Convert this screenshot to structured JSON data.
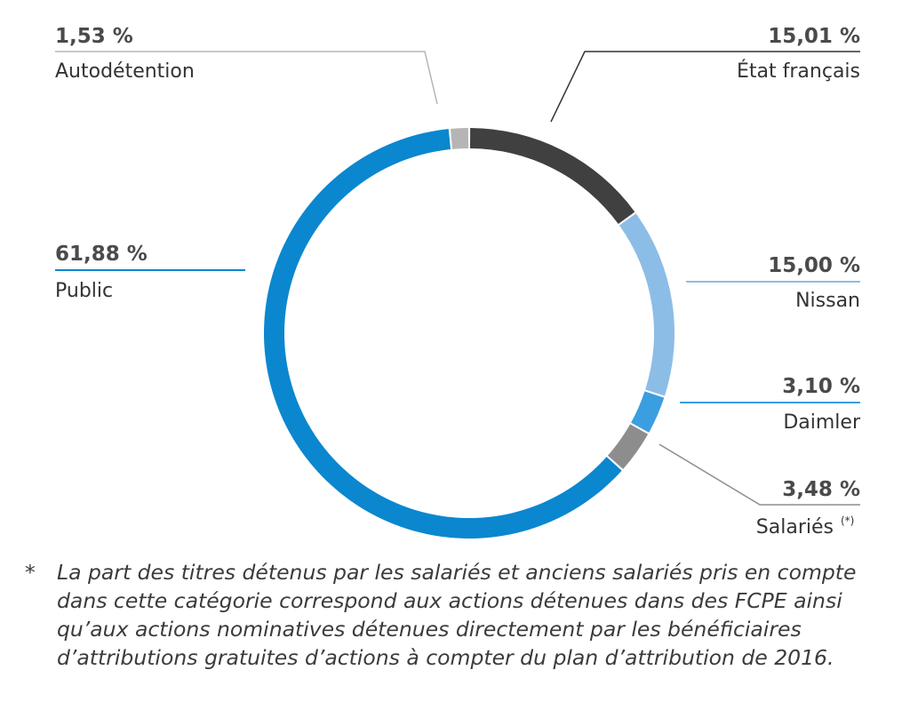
{
  "chart_data": {
    "type": "pie",
    "style": "donut",
    "slices": [
      {
        "label": "État français",
        "value": 15.01,
        "display": "15,01 %",
        "color": "#404040"
      },
      {
        "label": "Nissan",
        "value": 15.0,
        "display": "15,00 %",
        "color": "#8cbde6"
      },
      {
        "label": "Daimler",
        "value": 3.1,
        "display": "3,10 %",
        "color": "#3a9ee0"
      },
      {
        "label": "Salariés",
        "label_marker": "(*)",
        "value": 3.48,
        "display": "3,48 %",
        "color": "#8d8d8d"
      },
      {
        "label": "Public",
        "value": 61.88,
        "display": "61,88 %",
        "color": "#0a87cf"
      },
      {
        "label": "Autodétention",
        "value": 1.53,
        "display": "1,53 %",
        "color": "#b5b5b5"
      }
    ]
  },
  "footnote": {
    "marker": "*",
    "text": "La part des titres détenus par les salariés et anciens salariés pris en compte dans cette catégorie correspond aux actions détenues dans des FCPE ainsi qu’aux actions nominatives détenues directement par  les bénéficiaires d’attributions gratuites d’actions à compter du plan d’attribution de 2016."
  }
}
